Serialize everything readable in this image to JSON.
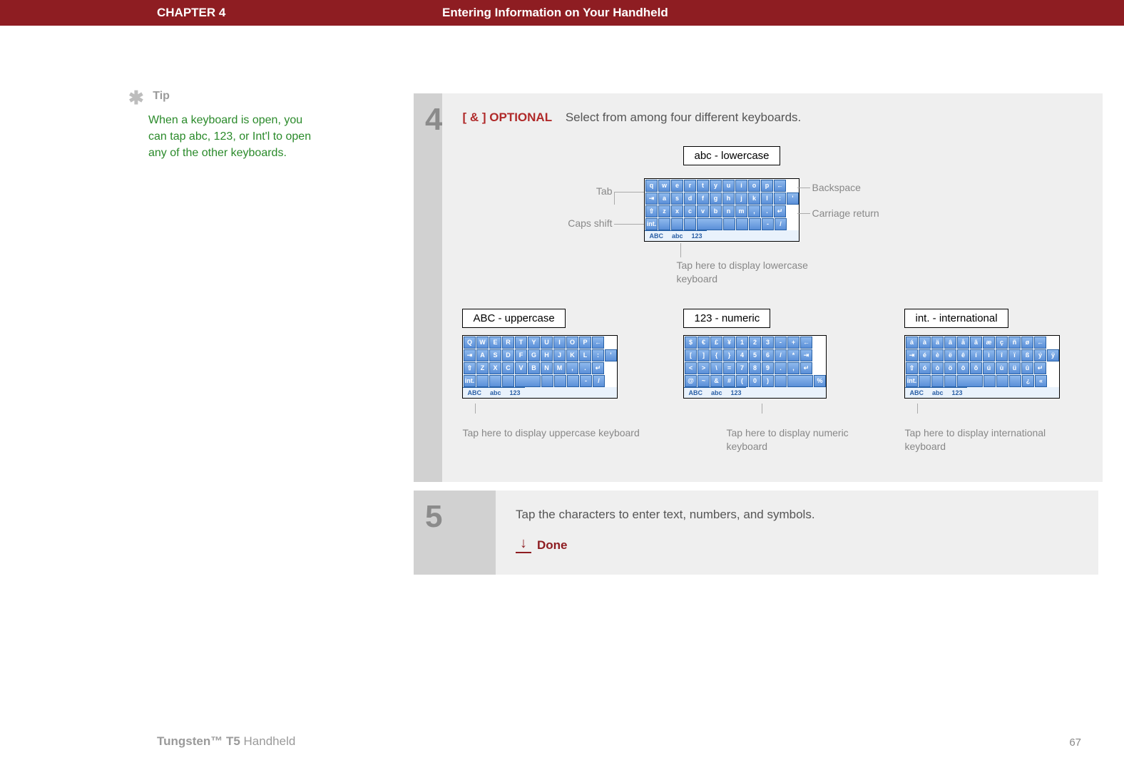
{
  "header": {
    "chapter": "CHAPTER 4",
    "title": "Entering Information on Your Handheld"
  },
  "tip": {
    "label": "Tip",
    "body": "When a keyboard is open, you can tap abc, 123, or Int'l to open any of the other keyboards."
  },
  "step4": {
    "num": "4",
    "optional_tag": "[ & ]  OPTIONAL",
    "text": "Select from among four different keyboards.",
    "top_label": "abc - lowercase",
    "callouts": {
      "tab": "Tab",
      "caps": "Caps shift",
      "backspace": "Backspace",
      "carriage": "Carriage return",
      "below": "Tap here to display lowercase keyboard"
    },
    "lowercase_rows": [
      [
        "q",
        "w",
        "e",
        "r",
        "t",
        "y",
        "u",
        "i",
        "o",
        "p",
        "←"
      ],
      [
        "⇥",
        "a",
        "s",
        "d",
        "f",
        "g",
        "h",
        "j",
        "k",
        "l",
        ":",
        "'"
      ],
      [
        "⇧",
        "z",
        "x",
        "c",
        "v",
        "b",
        "n",
        "m",
        ",",
        ".",
        "↵"
      ],
      [
        "int.",
        "",
        "",
        "",
        "␣",
        "",
        "",
        "",
        "-",
        "/"
      ]
    ],
    "uppercase": {
      "label": "ABC - uppercase",
      "rows": [
        [
          "Q",
          "W",
          "E",
          "R",
          "T",
          "Y",
          "U",
          "I",
          "O",
          "P",
          "←"
        ],
        [
          "⇥",
          "A",
          "S",
          "D",
          "F",
          "G",
          "H",
          "J",
          "K",
          "L",
          ":",
          "'"
        ],
        [
          "⇧",
          "Z",
          "X",
          "C",
          "V",
          "B",
          "N",
          "M",
          ",",
          ".",
          "↵"
        ],
        [
          "int.",
          "",
          "",
          "",
          "␣",
          "",
          "",
          "",
          "-",
          "/"
        ]
      ],
      "caption": "Tap here to display uppercase keyboard"
    },
    "numeric": {
      "label": "123 - numeric",
      "rows": [
        [
          "$",
          "€",
          "£",
          "¥",
          "1",
          "2",
          "3",
          "-",
          "+",
          "←"
        ],
        [
          "[",
          "]",
          "{",
          "}",
          "4",
          "5",
          "6",
          "/",
          "*",
          "⇥"
        ],
        [
          "<",
          ">",
          "\\",
          "=",
          "7",
          "8",
          "9",
          ".",
          ",",
          "↵"
        ],
        [
          "@",
          "~",
          "&",
          "#",
          "(",
          "0",
          ")",
          "",
          "␣",
          "%"
        ]
      ],
      "caption": "Tap here to display numeric keyboard"
    },
    "intl": {
      "label": "int. - international",
      "rows": [
        [
          "á",
          "à",
          "ä",
          "â",
          "å",
          "ã",
          "æ",
          "ç",
          "ñ",
          "ø",
          "←"
        ],
        [
          "⇥",
          "é",
          "è",
          "ë",
          "ê",
          "í",
          "ì",
          "î",
          "ï",
          "ß",
          "ý",
          "ÿ"
        ],
        [
          "⇧",
          "ó",
          "ò",
          "ö",
          "ô",
          "õ",
          "ú",
          "ù",
          "ü",
          "û",
          "↵"
        ],
        [
          "int.",
          "",
          "",
          "",
          "␣",
          "",
          "",
          "",
          "¿",
          "«"
        ]
      ],
      "caption": "Tap here to display international keyboard"
    },
    "bottom_tabs": [
      "ABC",
      "abc",
      "123"
    ],
    "colors": {
      "key_top": "#8fb9ed",
      "key_bot": "#5a8fd8",
      "key_border": "#2761a7",
      "bar_bg": "#e9f2fc",
      "bar_text": "#2a5fa5"
    }
  },
  "step5": {
    "num": "5",
    "text": "Tap the characters to enter text, numbers, and symbols.",
    "done": "Done"
  },
  "footer": {
    "product_bold": "Tungsten™ T5",
    "product_rest": " Handheld",
    "page": "67"
  }
}
